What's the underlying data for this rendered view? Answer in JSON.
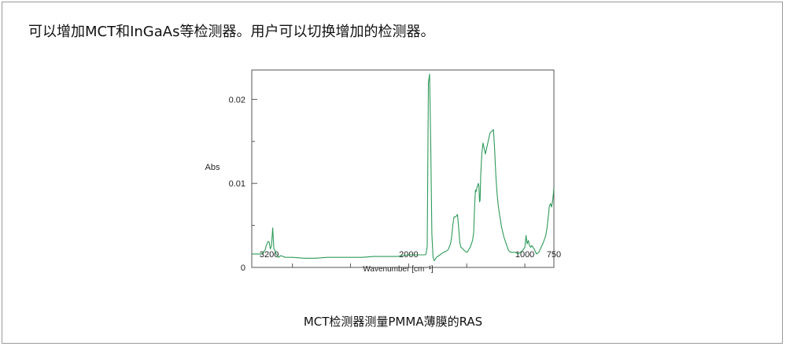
{
  "document": {
    "intro_text": "可以增加MCT和InGaAs等检测器。用户可以切换增加的检测器。",
    "caption": "MCT检测器测量PMMA薄膜的RAS"
  },
  "chart_data": {
    "type": "line",
    "title": "",
    "xlabel": "Wavenumber [cm⁻¹]",
    "ylabel": "Abs",
    "xlim": [
      3350,
      750
    ],
    "ylim": [
      0,
      0.0235
    ],
    "x_tick_labels": [
      {
        "value": 3200,
        "label": "3200"
      },
      {
        "value": 2000,
        "label": "2000"
      },
      {
        "value": 1000,
        "label": "1000"
      },
      {
        "value": 750,
        "label": "750"
      }
    ],
    "y_tick_labels": [
      {
        "value": 0,
        "label": "0"
      },
      {
        "value": 0.01,
        "label": "0.01"
      },
      {
        "value": 0.02,
        "label": "0.02"
      }
    ],
    "grid": false,
    "color": "#2e9a5a",
    "series": [
      {
        "x": [
          3350,
          3300,
          3270,
          3250,
          3235,
          3225,
          3210,
          3200,
          3190,
          3180,
          3170,
          3160,
          3150,
          3140,
          3120,
          3100,
          3060,
          3000,
          2900,
          2800,
          2700,
          2600,
          2500,
          2400,
          2300,
          2200,
          2150,
          2100,
          2050,
          2000,
          1950,
          1900,
          1880,
          1860,
          1850,
          1840,
          1830,
          1820,
          1810,
          1800,
          1790,
          1780,
          1760,
          1740,
          1720,
          1700,
          1680,
          1660,
          1640,
          1630,
          1620,
          1610,
          1600,
          1590,
          1580,
          1570,
          1560,
          1550,
          1540,
          1520,
          1500,
          1490,
          1480,
          1470,
          1460,
          1450,
          1440,
          1435,
          1430,
          1425,
          1420,
          1410,
          1400,
          1395,
          1390,
          1385,
          1380,
          1370,
          1360,
          1340,
          1300,
          1270,
          1260,
          1250,
          1240,
          1230,
          1220,
          1200,
          1190,
          1180,
          1170,
          1160,
          1150,
          1140,
          1120,
          1100,
          1080,
          1060,
          1040,
          1020,
          1000,
          990,
          980,
          970,
          960,
          950,
          940,
          920,
          900,
          880,
          860,
          840,
          820,
          810,
          800,
          790,
          780,
          770,
          760,
          750
        ],
        "y": [
          0.0016,
          0.0016,
          0.0016,
          0.0018,
          0.0021,
          0.0026,
          0.0031,
          0.003,
          0.0022,
          0.0026,
          0.0047,
          0.0022,
          0.002,
          0.0016,
          0.0012,
          0.0014,
          0.0012,
          0.0012,
          0.0011,
          0.0011,
          0.0012,
          0.0012,
          0.0012,
          0.0012,
          0.0013,
          0.0013,
          0.0013,
          0.0013,
          0.0014,
          0.0015,
          0.0015,
          0.0015,
          0.0015,
          0.0015,
          0.0016,
          0.0025,
          0.022,
          0.023,
          0.015,
          0.004,
          0.0012,
          0.0008,
          0.0012,
          0.0014,
          0.0016,
          0.0018,
          0.0019,
          0.0021,
          0.0028,
          0.0036,
          0.005,
          0.006,
          0.006,
          0.0061,
          0.0063,
          0.0048,
          0.003,
          0.0024,
          0.0023,
          0.002,
          0.0018,
          0.0019,
          0.0022,
          0.0024,
          0.0028,
          0.0032,
          0.0042,
          0.0062,
          0.008,
          0.0092,
          0.009,
          0.0096,
          0.01,
          0.0096,
          0.0078,
          0.008,
          0.011,
          0.0136,
          0.0148,
          0.0135,
          0.016,
          0.0164,
          0.014,
          0.011,
          0.009,
          0.0075,
          0.0065,
          0.0048,
          0.0042,
          0.0036,
          0.0032,
          0.0028,
          0.0024,
          0.002,
          0.0018,
          0.0018,
          0.0018,
          0.0016,
          0.0018,
          0.002,
          0.0024,
          0.0038,
          0.0028,
          0.0032,
          0.0026,
          0.0024,
          0.0026,
          0.0022,
          0.0016,
          0.0018,
          0.0024,
          0.003,
          0.0038,
          0.0046,
          0.0058,
          0.0072,
          0.0076,
          0.0072,
          0.008,
          0.0094
        ]
      }
    ]
  }
}
